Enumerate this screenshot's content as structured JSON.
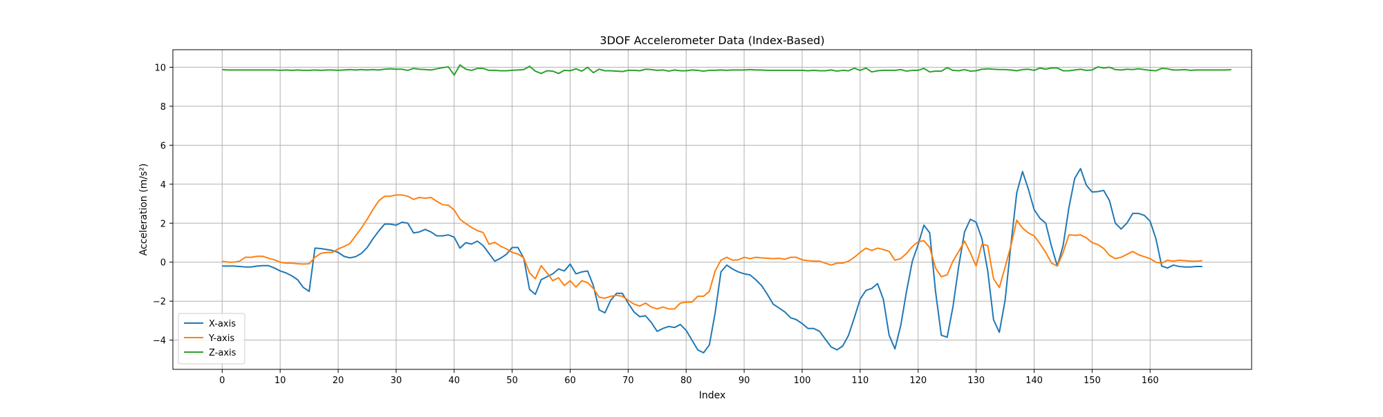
{
  "chart_data": {
    "type": "line",
    "title": "3DOF Accelerometer Data (Index-Based)",
    "xlabel": "Index",
    "ylabel": "Acceleration (m/s²)",
    "xlim": [
      -8.5,
      177.5
    ],
    "ylim": [
      -5.5,
      10.9
    ],
    "xticks": [
      0,
      10,
      20,
      30,
      40,
      50,
      60,
      70,
      80,
      90,
      100,
      110,
      120,
      130,
      140,
      150,
      160
    ],
    "yticks": [
      -4,
      -2,
      0,
      2,
      4,
      6,
      8,
      10
    ],
    "grid": true,
    "legend_position": "lower-left",
    "series": [
      {
        "name": "X-axis",
        "color": "#1f77b4",
        "values": [
          -0.2,
          -0.2,
          -0.2,
          -0.22,
          -0.25,
          -0.25,
          -0.2,
          -0.18,
          -0.18,
          -0.3,
          -0.45,
          -0.55,
          -0.7,
          -0.9,
          -1.3,
          -1.5,
          0.72,
          0.7,
          0.65,
          0.6,
          0.5,
          0.3,
          0.22,
          0.28,
          0.45,
          0.75,
          1.2,
          1.6,
          1.95,
          1.95,
          1.9,
          2.05,
          2.0,
          1.5,
          1.55,
          1.68,
          1.55,
          1.35,
          1.35,
          1.4,
          1.28,
          0.72,
          1.0,
          0.93,
          1.08,
          0.85,
          0.45,
          0.05,
          0.2,
          0.4,
          0.75,
          0.75,
          0.2,
          -1.4,
          -1.65,
          -0.9,
          -0.75,
          -0.6,
          -0.35,
          -0.45,
          -0.1,
          -0.6,
          -0.5,
          -0.45,
          -1.2,
          -2.45,
          -2.6,
          -1.95,
          -1.6,
          -1.6,
          -2.1,
          -2.55,
          -2.8,
          -2.75,
          -3.1,
          -3.55,
          -3.4,
          -3.3,
          -3.35,
          -3.2,
          -3.5,
          -4.0,
          -4.5,
          -4.65,
          -4.25,
          -2.6,
          -0.5,
          -0.15,
          -0.35,
          -0.5,
          -0.6,
          -0.65,
          -0.9,
          -1.2,
          -1.65,
          -2.15,
          -2.35,
          -2.55,
          -2.85,
          -2.95,
          -3.15,
          -3.4,
          -3.4,
          -3.55,
          -3.95,
          -4.35,
          -4.5,
          -4.3,
          -3.75,
          -2.85,
          -1.9,
          -1.45,
          -1.35,
          -1.1,
          -1.9,
          -3.75,
          -4.45,
          -3.25,
          -1.5,
          0.05,
          0.9,
          1.9,
          1.5,
          -1.5,
          -3.75,
          -3.85,
          -2.3,
          -0.2,
          1.55,
          2.2,
          2.05,
          1.2,
          -0.45,
          -2.95,
          -3.6,
          -1.95,
          0.9,
          3.55,
          4.65,
          3.75,
          2.7,
          2.25,
          2.0,
          0.8,
          -0.2,
          0.85,
          2.8,
          4.3,
          4.8,
          3.95,
          3.6,
          3.62,
          3.68,
          3.15,
          2.0,
          1.7,
          2.0,
          2.5,
          2.5,
          2.4,
          2.1,
          1.2,
          -0.2,
          -0.3,
          -0.15,
          -0.22,
          -0.25,
          -0.25,
          -0.22,
          -0.22
        ]
      },
      {
        "name": "Y-axis",
        "color": "#ff7f0e",
        "values": [
          0.05,
          0.0,
          0.0,
          0.05,
          0.25,
          0.25,
          0.3,
          0.3,
          0.2,
          0.12,
          0.0,
          -0.05,
          -0.05,
          -0.08,
          -0.1,
          -0.08,
          0.25,
          0.45,
          0.5,
          0.5,
          0.68,
          0.8,
          0.95,
          1.35,
          1.75,
          2.2,
          2.7,
          3.15,
          3.38,
          3.38,
          3.45,
          3.45,
          3.38,
          3.22,
          3.32,
          3.28,
          3.32,
          3.12,
          2.95,
          2.92,
          2.68,
          2.2,
          1.98,
          1.78,
          1.62,
          1.52,
          0.92,
          1.02,
          0.82,
          0.68,
          0.5,
          0.42,
          0.22,
          -0.55,
          -0.85,
          -0.18,
          -0.55,
          -0.95,
          -0.8,
          -1.2,
          -0.95,
          -1.28,
          -0.95,
          -1.05,
          -1.35,
          -1.8,
          -1.85,
          -1.75,
          -1.7,
          -1.75,
          -1.95,
          -2.15,
          -2.25,
          -2.1,
          -2.3,
          -2.4,
          -2.3,
          -2.4,
          -2.4,
          -2.1,
          -2.05,
          -2.05,
          -1.75,
          -1.75,
          -1.5,
          -0.45,
          0.1,
          0.25,
          0.1,
          0.12,
          0.25,
          0.18,
          0.25,
          0.22,
          0.2,
          0.18,
          0.2,
          0.15,
          0.25,
          0.25,
          0.12,
          0.08,
          0.05,
          0.05,
          -0.05,
          -0.15,
          -0.05,
          -0.05,
          0.05,
          0.25,
          0.5,
          0.72,
          0.6,
          0.72,
          0.65,
          0.55,
          0.1,
          0.18,
          0.45,
          0.8,
          1.05,
          1.1,
          0.75,
          -0.3,
          -0.75,
          -0.65,
          0.05,
          0.55,
          1.08,
          0.48,
          -0.2,
          0.92,
          0.85,
          -0.85,
          -1.3,
          -0.25,
          0.85,
          2.15,
          1.75,
          1.5,
          1.35,
          0.95,
          0.5,
          -0.05,
          -0.2,
          0.5,
          1.4,
          1.38,
          1.4,
          1.25,
          1.0,
          0.9,
          0.7,
          0.35,
          0.18,
          0.25,
          0.4,
          0.55,
          0.38,
          0.28,
          0.18,
          0.0,
          -0.05,
          0.1,
          0.05,
          0.1,
          0.08,
          0.05,
          0.05,
          0.08
        ]
      },
      {
        "name": "Z-axis",
        "color": "#2ca02c",
        "values": [
          9.88,
          9.86,
          9.86,
          9.86,
          9.86,
          9.86,
          9.86,
          9.86,
          9.86,
          9.86,
          9.84,
          9.86,
          9.84,
          9.86,
          9.84,
          9.84,
          9.86,
          9.84,
          9.86,
          9.86,
          9.84,
          9.86,
          9.88,
          9.86,
          9.88,
          9.86,
          9.88,
          9.86,
          9.9,
          9.92,
          9.9,
          9.9,
          9.84,
          9.94,
          9.9,
          9.88,
          9.86,
          9.92,
          9.98,
          10.02,
          9.6,
          10.12,
          9.9,
          9.84,
          9.94,
          9.94,
          9.84,
          9.84,
          9.82,
          9.82,
          9.84,
          9.86,
          9.88,
          10.05,
          9.8,
          9.68,
          9.82,
          9.8,
          9.68,
          9.84,
          9.82,
          9.92,
          9.8,
          10.0,
          9.72,
          9.9,
          9.82,
          9.82,
          9.8,
          9.78,
          9.84,
          9.84,
          9.82,
          9.9,
          9.88,
          9.84,
          9.86,
          9.8,
          9.86,
          9.82,
          9.82,
          9.86,
          9.84,
          9.8,
          9.84,
          9.84,
          9.86,
          9.84,
          9.86,
          9.86,
          9.86,
          9.88,
          9.86,
          9.86,
          9.84,
          9.84,
          9.84,
          9.84,
          9.84,
          9.84,
          9.84,
          9.82,
          9.84,
          9.82,
          9.82,
          9.86,
          9.8,
          9.84,
          9.82,
          9.95,
          9.84,
          9.96,
          9.76,
          9.82,
          9.84,
          9.84,
          9.84,
          9.88,
          9.8,
          9.84,
          9.84,
          9.94,
          9.76,
          9.8,
          9.8,
          9.98,
          9.84,
          9.82,
          9.88,
          9.8,
          9.82,
          9.9,
          9.92,
          9.9,
          9.88,
          9.88,
          9.86,
          9.82,
          9.88,
          9.9,
          9.84,
          9.96,
          9.9,
          9.96,
          9.96,
          9.82,
          9.82,
          9.86,
          9.9,
          9.84,
          9.86,
          10.02,
          9.96,
          10.0,
          9.88,
          9.86,
          9.9,
          9.88,
          9.92,
          9.88,
          9.84,
          9.82,
          9.94,
          9.92,
          9.86,
          9.86,
          9.88,
          9.84,
          9.86,
          9.86,
          9.86,
          9.86,
          9.86,
          9.86,
          9.88
        ]
      }
    ]
  }
}
